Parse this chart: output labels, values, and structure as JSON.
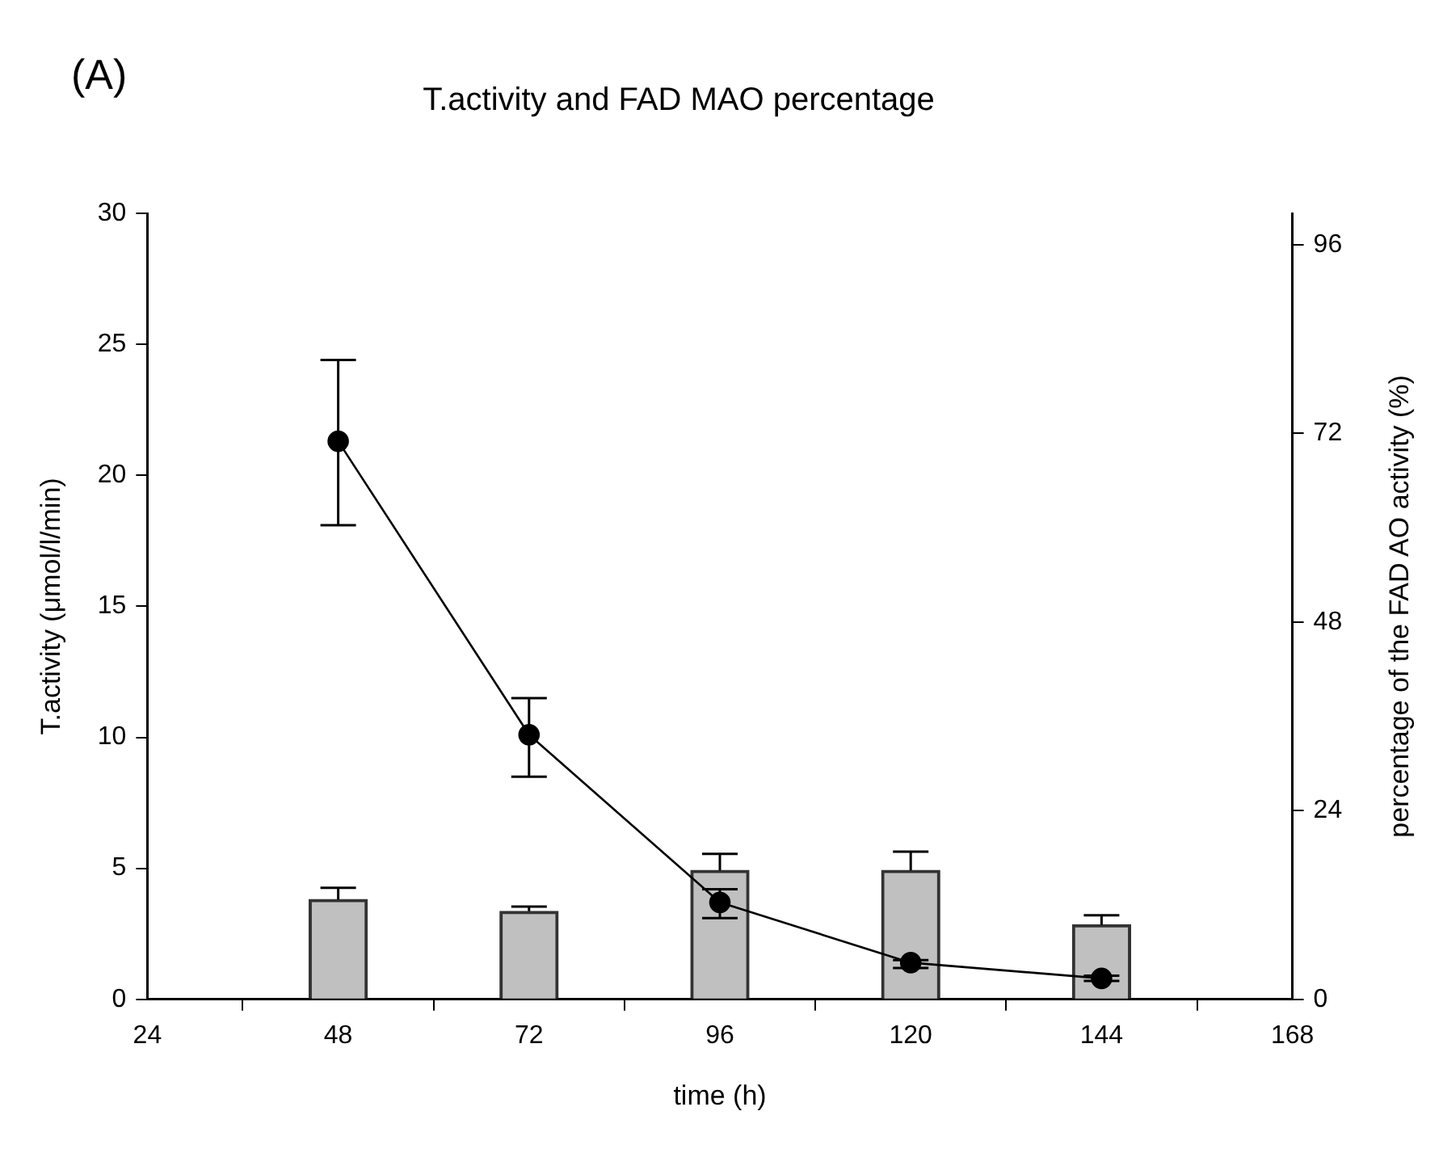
{
  "chart_data": {
    "type": "bar",
    "title": "T.activity and FAD MAO percentage",
    "annotations": [
      "(A)"
    ],
    "xlabel": "time (h)",
    "ylabel": "T.activity (μmol/l/min)",
    "y2label": "percentage of the FAD AO activity (%)",
    "x": [
      48,
      72,
      96,
      120,
      144
    ],
    "xlim": [
      24,
      168
    ],
    "xticks": [
      24,
      48,
      72,
      96,
      120,
      144,
      168
    ],
    "ylim": [
      0,
      30
    ],
    "yticks": [
      0,
      5,
      10,
      15,
      20,
      25,
      30
    ],
    "y2lim": [
      0,
      100
    ],
    "y2ticks": [
      0,
      24,
      48,
      72,
      96
    ],
    "grid": false,
    "legend": false,
    "marker": "circle",
    "line_style": "solid",
    "series": [
      {
        "axis": "y2",
        "color": "#c0c0c0",
        "values": [
          12.7,
          11.2,
          16.4,
          16.4,
          9.5
        ],
        "errors": [
          [
            12.7,
            14.2
          ],
          [
            11.2,
            11.8
          ],
          [
            16.4,
            18.5
          ],
          [
            16.4,
            18.8
          ],
          [
            9.5,
            10.7
          ]
        ]
      },
      {
        "type": "line",
        "axis": "y",
        "color": "#000000",
        "values": [
          21.3,
          10.1,
          3.7,
          1.4,
          0.8
        ],
        "errors": [
          [
            18.1,
            24.4
          ],
          [
            8.5,
            11.5
          ],
          [
            3.1,
            4.2
          ],
          [
            1.2,
            1.5
          ],
          [
            0.7,
            0.9
          ]
        ]
      }
    ]
  }
}
